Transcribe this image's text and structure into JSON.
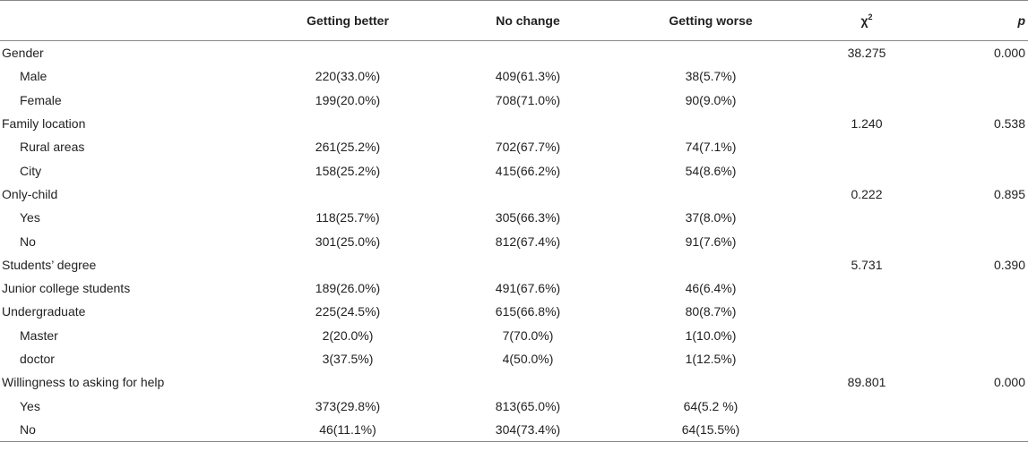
{
  "header": {
    "col0": "",
    "col1": "Getting better",
    "col2": "No change",
    "col3": "Getting worse",
    "col4_base": "χ",
    "col4_sup": "2",
    "col5": "p"
  },
  "rows": [
    {
      "label": "Gender",
      "indent": false,
      "better": "",
      "nochange": "",
      "worse": "",
      "chi": "38.275",
      "p": "0.000"
    },
    {
      "label": "Male",
      "indent": true,
      "better": "220(33.0%)",
      "nochange": "409(61.3%)",
      "worse": "38(5.7%)",
      "chi": "",
      "p": ""
    },
    {
      "label": "Female",
      "indent": true,
      "better": "199(20.0%)",
      "nochange": "708(71.0%)",
      "worse": "90(9.0%)",
      "chi": "",
      "p": ""
    },
    {
      "label": "Family location",
      "indent": false,
      "better": "",
      "nochange": "",
      "worse": "",
      "chi": "1.240",
      "p": "0.538"
    },
    {
      "label": "Rural areas",
      "indent": true,
      "better": "261(25.2%)",
      "nochange": "702(67.7%)",
      "worse": "74(7.1%)",
      "chi": "",
      "p": ""
    },
    {
      "label": "City",
      "indent": true,
      "better": "158(25.2%)",
      "nochange": "415(66.2%)",
      "worse": "54(8.6%)",
      "chi": "",
      "p": ""
    },
    {
      "label": "Only-child",
      "indent": false,
      "better": "",
      "nochange": "",
      "worse": "",
      "chi": "0.222",
      "p": "0.895"
    },
    {
      "label": "Yes",
      "indent": true,
      "better": "118(25.7%)",
      "nochange": "305(66.3%)",
      "worse": "37(8.0%)",
      "chi": "",
      "p": ""
    },
    {
      "label": "No",
      "indent": true,
      "better": "301(25.0%)",
      "nochange": "812(67.4%)",
      "worse": "91(7.6%)",
      "chi": "",
      "p": ""
    },
    {
      "label": "Students’ degree",
      "indent": false,
      "better": "",
      "nochange": "",
      "worse": "",
      "chi": "5.731",
      "p": "0.390"
    },
    {
      "label": "Junior college students",
      "indent": false,
      "better": "189(26.0%)",
      "nochange": "491(67.6%)",
      "worse": "46(6.4%)",
      "chi": "",
      "p": ""
    },
    {
      "label": "Undergraduate",
      "indent": false,
      "better": "225(24.5%)",
      "nochange": "615(66.8%)",
      "worse": "80(8.7%)",
      "chi": "",
      "p": ""
    },
    {
      "label": "Master",
      "indent": true,
      "better": "2(20.0%)",
      "nochange": "7(70.0%)",
      "worse": "1(10.0%)",
      "chi": "",
      "p": ""
    },
    {
      "label": "doctor",
      "indent": true,
      "better": "3(37.5%)",
      "nochange": "4(50.0%)",
      "worse": "1(12.5%)",
      "chi": "",
      "p": ""
    },
    {
      "label": "Willingness to asking for help",
      "indent": false,
      "better": "",
      "nochange": "",
      "worse": "",
      "chi": "89.801",
      "p": "0.000"
    },
    {
      "label": "Yes",
      "indent": true,
      "better": "373(29.8%)",
      "nochange": "813(65.0%)",
      "worse": "64(5.2 %)",
      "chi": "",
      "p": ""
    },
    {
      "label": "No",
      "indent": true,
      "better": "46(11.1%)",
      "nochange": "304(73.4%)",
      "worse": "64(15.5%)",
      "chi": "",
      "p": ""
    }
  ]
}
